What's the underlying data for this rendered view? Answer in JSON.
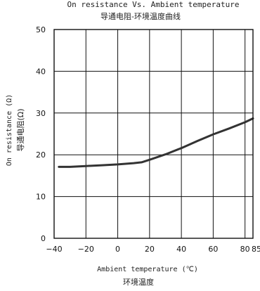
{
  "chart_data": {
    "type": "line",
    "title": "On resistance Vs. Ambient temperature",
    "subtitle": "导通电阻-环境温度曲线",
    "xlabel": "Ambient temperature (℃)",
    "xlabel_cn": "环境温度",
    "ylabel": "On resistance (Ω)",
    "ylabel_cn": "导通电阻(Ω)",
    "xlim": [
      -40,
      85
    ],
    "ylim": [
      0,
      50
    ],
    "xticks": [
      -40,
      -20,
      0,
      20,
      40,
      60,
      80,
      85
    ],
    "xtick_labels": [
      "−40",
      "−20",
      "0",
      "20",
      "40",
      "60",
      "80",
      "85"
    ],
    "yticks": [
      0,
      10,
      20,
      30,
      40,
      50
    ],
    "ytick_labels": [
      "0",
      "10",
      "20",
      "30",
      "40",
      "50"
    ],
    "grid": true,
    "series": [
      {
        "x": [
          -37,
          -30,
          -20,
          -10,
          0,
          10,
          15,
          20,
          30,
          40,
          50,
          60,
          70,
          80,
          85
        ],
        "values": [
          17.1,
          17.1,
          17.3,
          17.5,
          17.7,
          18.0,
          18.2,
          18.8,
          20.1,
          21.6,
          23.3,
          24.9,
          26.3,
          27.8,
          28.7
        ]
      }
    ]
  }
}
